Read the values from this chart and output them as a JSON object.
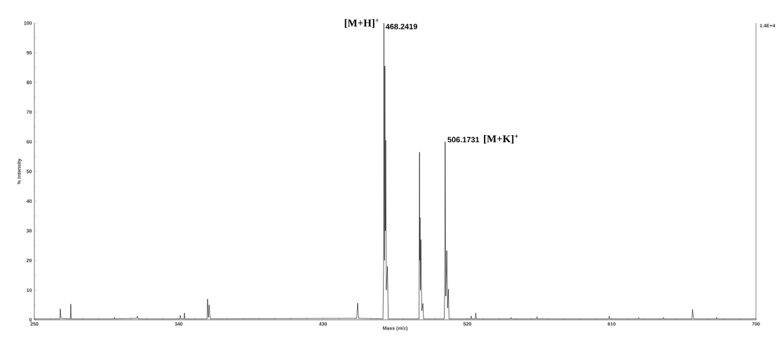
{
  "chart_data": {
    "type": "line",
    "xlabel": "Mass (m/z)",
    "ylabel": "% Intensity",
    "xlim": [
      250,
      700
    ],
    "ylim": [
      0,
      100
    ],
    "xticks": [
      250,
      340,
      430,
      520,
      610,
      700
    ],
    "yticks": [
      0,
      10,
      20,
      30,
      40,
      50,
      60,
      70,
      80,
      90,
      100
    ],
    "marker": "none",
    "line_style": "solid",
    "series": [
      {
        "color": "#000000",
        "x": [
          250,
          265.9,
          266.2,
          266.6,
          272.4,
          272.7,
          273.0,
          299.7,
          300.0,
          300.3,
          313.8,
          314.3,
          314.7,
          340.7,
          341.0,
          341.4,
          343.3,
          343.6,
          343.9,
          357.7,
          358.0,
          358.6,
          359.0,
          359.4,
          359.8,
          451.0,
          451.6,
          452.2,
          467.4,
          467.8,
          468.0,
          468.3,
          468.6,
          468.85,
          469.1,
          469.5,
          470.2,
          470.7,
          489.9,
          490.2,
          490.35,
          490.5,
          490.75,
          491.0,
          491.6,
          492.3,
          492.7,
          505.6,
          505.9,
          506.17,
          506.6,
          507.2,
          507.7,
          508.2,
          508.6,
          522.1,
          522.4,
          522.7,
          525.0,
          525.3,
          525.6,
          547.0,
          547.3,
          547.6,
          563.2,
          563.5,
          563.8,
          608.2,
          608.5,
          608.8,
          626.5,
          626.8,
          627.1,
          642.0,
          642.3,
          642.6,
          660.1,
          660.4,
          660.8,
          661.2,
          675.2,
          675.5,
          675.8,
          700
        ],
        "values": [
          0.3,
          0.3,
          3.7,
          0.5,
          0.3,
          5.3,
          0.3,
          0.3,
          0.8,
          0.3,
          0.5,
          1.2,
          0.3,
          0.3,
          1.5,
          0.4,
          0.3,
          2.3,
          0.3,
          0.3,
          7.0,
          0.8,
          5.0,
          1.5,
          0.3,
          0.5,
          5.6,
          0.5,
          0.3,
          18,
          100,
          20,
          85.5,
          30,
          60.5,
          10,
          18,
          0.3,
          0.3,
          56.5,
          20,
          34.5,
          10,
          27,
          3,
          5.5,
          0.3,
          0.3,
          10,
          60,
          8,
          23.3,
          4,
          10.3,
          0.3,
          0.3,
          1.3,
          0.3,
          0.3,
          2.3,
          0.3,
          0.3,
          0.8,
          0.3,
          0.3,
          1.0,
          0.3,
          0.3,
          1.2,
          0.3,
          0.3,
          0.8,
          0.3,
          0.3,
          0.8,
          0.3,
          0.3,
          3.5,
          1.5,
          0.3,
          0.3,
          0.8,
          0.3,
          0.3
        ]
      }
    ],
    "annotations": [
      "[M+H]$^{+}$",
      {
        "text": "468.2419",
        "x": 468.0,
        "y": 100
      },
      {
        "text": "506.1731",
        "x": 506.17,
        "y": 60
      },
      "[M+K]$^{+}$",
      "1.4E+4"
    ]
  }
}
